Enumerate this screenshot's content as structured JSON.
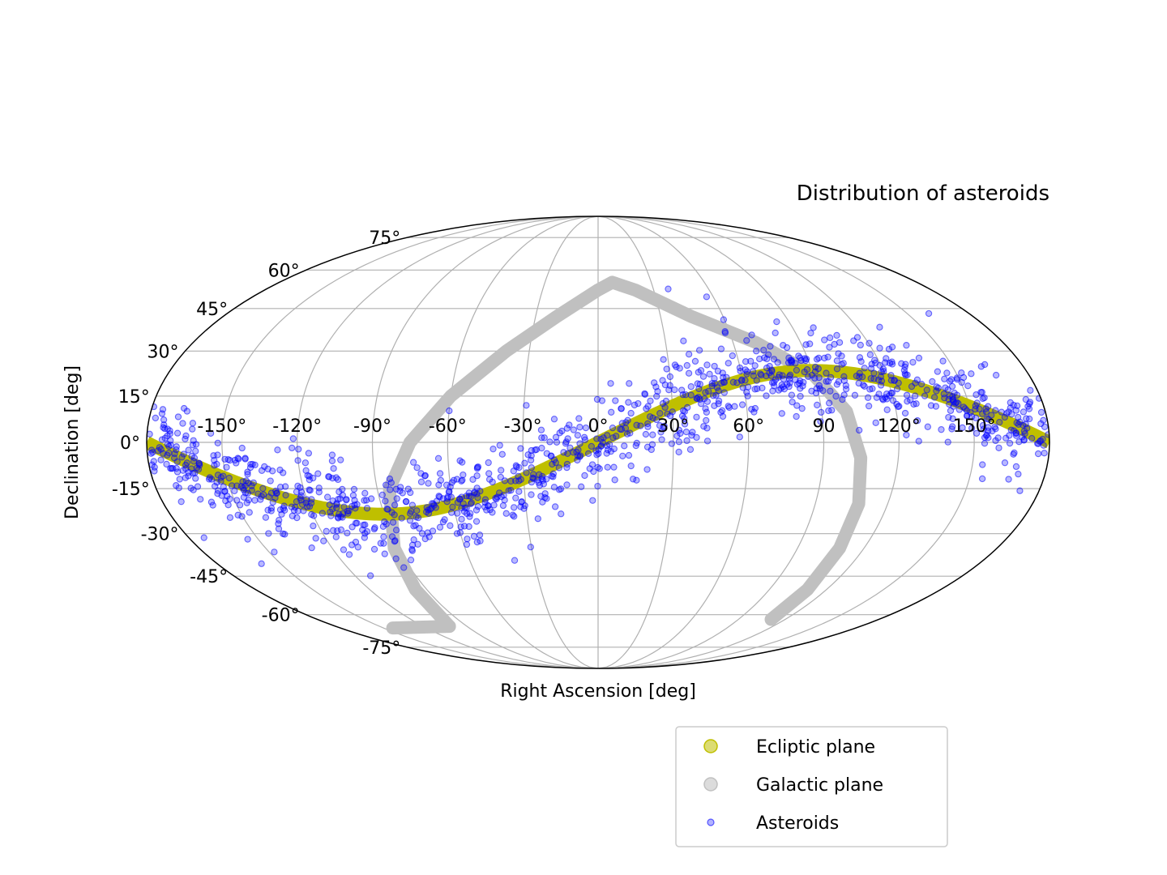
{
  "chart_data": {
    "type": "scatter",
    "projection": "mollweide",
    "title": "Distribution of asteroids",
    "xlabel": "Right Ascension [deg]",
    "ylabel": "Declination [deg]",
    "xlim": [
      -180,
      180
    ],
    "ylim": [
      -90,
      90
    ],
    "grid": true,
    "x_tick_labels": [
      "-150°",
      "-120°",
      "-90°",
      "-60°",
      "-30°",
      "0°",
      "30°",
      "60°",
      "90",
      "120°",
      "150°"
    ],
    "x_tick_values": [
      -150,
      -120,
      -90,
      -60,
      -30,
      0,
      30,
      60,
      90,
      120,
      150
    ],
    "y_tick_labels": [
      "-75°",
      "-60°",
      "-45°",
      "-30°",
      "-15°",
      "0°",
      "15°",
      "30°",
      "45°",
      "60°",
      "75°"
    ],
    "y_tick_values": [
      -75,
      -60,
      -45,
      -30,
      -15,
      0,
      15,
      30,
      45,
      60,
      75
    ],
    "legend_placement": "below plot, right of center",
    "series": [
      {
        "name": "Ecliptic plane",
        "kind": "curve",
        "color": "#bfbf00",
        "formula": "dec = 23.44 * sin(ra)",
        "ra_range": [
          -180,
          180
        ]
      },
      {
        "name": "Galactic plane",
        "kind": "curve",
        "color": "#c0c0c0",
        "points": [
          [
            -102,
            -65
          ],
          [
            -96,
            -50
          ],
          [
            -92,
            -35
          ],
          [
            -85,
            -15
          ],
          [
            -75,
            0
          ],
          [
            -60,
            15
          ],
          [
            -40,
            30
          ],
          [
            -20,
            42
          ],
          [
            0,
            52
          ],
          [
            8,
            55
          ],
          [
            20,
            52
          ],
          [
            45,
            42
          ],
          [
            70,
            33
          ],
          [
            90,
            22
          ],
          [
            100,
            10
          ],
          [
            105,
            -5
          ],
          [
            108,
            -20
          ],
          [
            109,
            -35
          ],
          [
            110,
            -50
          ],
          [
            111,
            -62
          ]
        ]
      },
      {
        "name": "Asteroids",
        "kind": "scatter",
        "color": "#0000ff",
        "sample_count": 1200,
        "distribution": "clustered around ecliptic plane, spread about 8 deg in declination"
      }
    ]
  },
  "legend": {
    "items": [
      {
        "label": "Ecliptic plane",
        "color": "#bfbf00"
      },
      {
        "label": "Galactic plane",
        "color": "#c0c0c0"
      },
      {
        "label": "Asteroids",
        "color": "#0000ff"
      }
    ]
  },
  "colors": {
    "grid": "#b0b0b0",
    "frame": "#000000",
    "ecliptic": "#bfbf00",
    "galactic": "#c0c0c0",
    "asteroids": "#0000ff"
  }
}
